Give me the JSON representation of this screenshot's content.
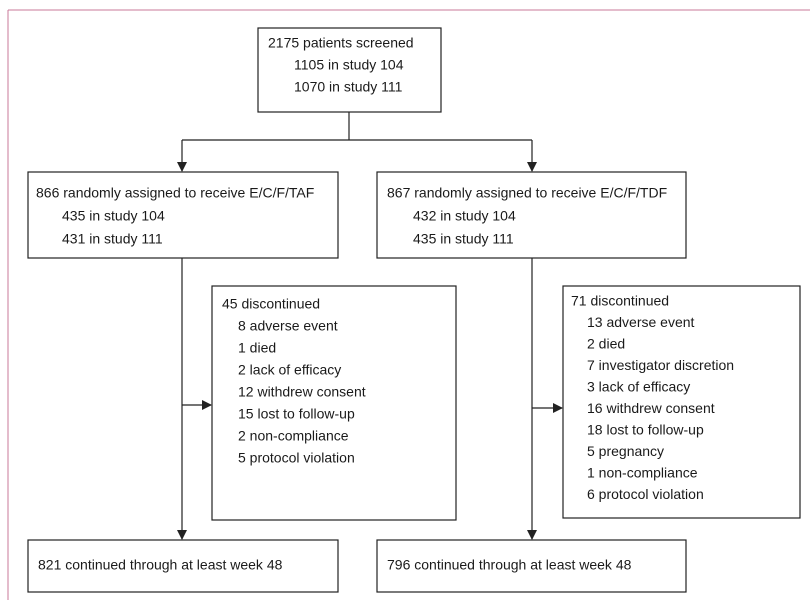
{
  "nodes": [
    {
      "title": "2175 patients screened",
      "items": [
        "1105 in study 104",
        "1070 in study 111"
      ]
    },
    {
      "title": "866 randomly assigned to receive E/C/F/TAF",
      "items": [
        "435 in study 104",
        "431 in study 111"
      ]
    },
    {
      "title": "867 randomly assigned to receive E/C/F/TDF",
      "items": [
        "432 in study 104",
        "435 in study 111"
      ]
    },
    {
      "title": "45 discontinued",
      "items": [
        "8 adverse event",
        "1 died",
        "2 lack of efficacy",
        "12 withdrew consent",
        "15 lost to follow-up",
        "2 non-compliance",
        "5 protocol violation"
      ]
    },
    {
      "title": "71 discontinued",
      "items": [
        "13 adverse event",
        "2 died",
        "7 investigator discretion",
        "3 lack of efficacy",
        "16 withdrew consent",
        "18 lost to follow-up",
        "5 pregnancy",
        "1 non-compliance",
        "6 protocol violation"
      ]
    },
    {
      "title": "821 continued through at least week 48"
    },
    {
      "title": "796 continued through at least week 48"
    }
  ]
}
